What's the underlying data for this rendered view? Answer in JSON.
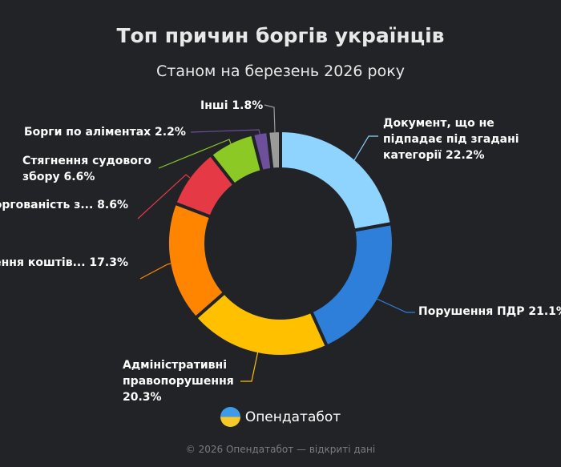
{
  "chart_data": {
    "type": "pie",
    "variant": "donut",
    "title": "Топ причин боргів українців",
    "subtitle": "Станом на березень 2026 року",
    "slices": [
      {
        "label": [
          "Документ, що не",
          "підпадає під згадані",
          "категорії 22.2%"
        ],
        "value": 22.2,
        "color": "#8fd3ff"
      },
      {
        "label": [
          "Порушення ПДР 21.1%"
        ],
        "value": 21.1,
        "color": "#2e7fd9"
      },
      {
        "label": [
          "Адміністративні",
          "правопорушення",
          "20.3%"
        ],
        "value": 20.3,
        "color": "#ffc000"
      },
      {
        "label": [
          "ення коштів... 17.3%"
        ],
        "value": 17.3,
        "color": "#ff8500"
      },
      {
        "label": [
          "оргованість з... 8.6%"
        ],
        "value": 8.6,
        "color": "#e63946"
      },
      {
        "label": [
          "Стягнення судового",
          "збору 6.6%"
        ],
        "value": 6.6,
        "color": "#8cc925"
      },
      {
        "label": [
          "Борги по аліментах 2.2%"
        ],
        "value": 2.2,
        "color": "#6d4f9c"
      },
      {
        "label": [
          "Інші 1.8%"
        ],
        "value": 1.8,
        "color": "#9b9b9b"
      }
    ],
    "legend": "none"
  },
  "brand": "Опендатабот",
  "footer": "© 2026 Опендатабот — відкриті дані"
}
